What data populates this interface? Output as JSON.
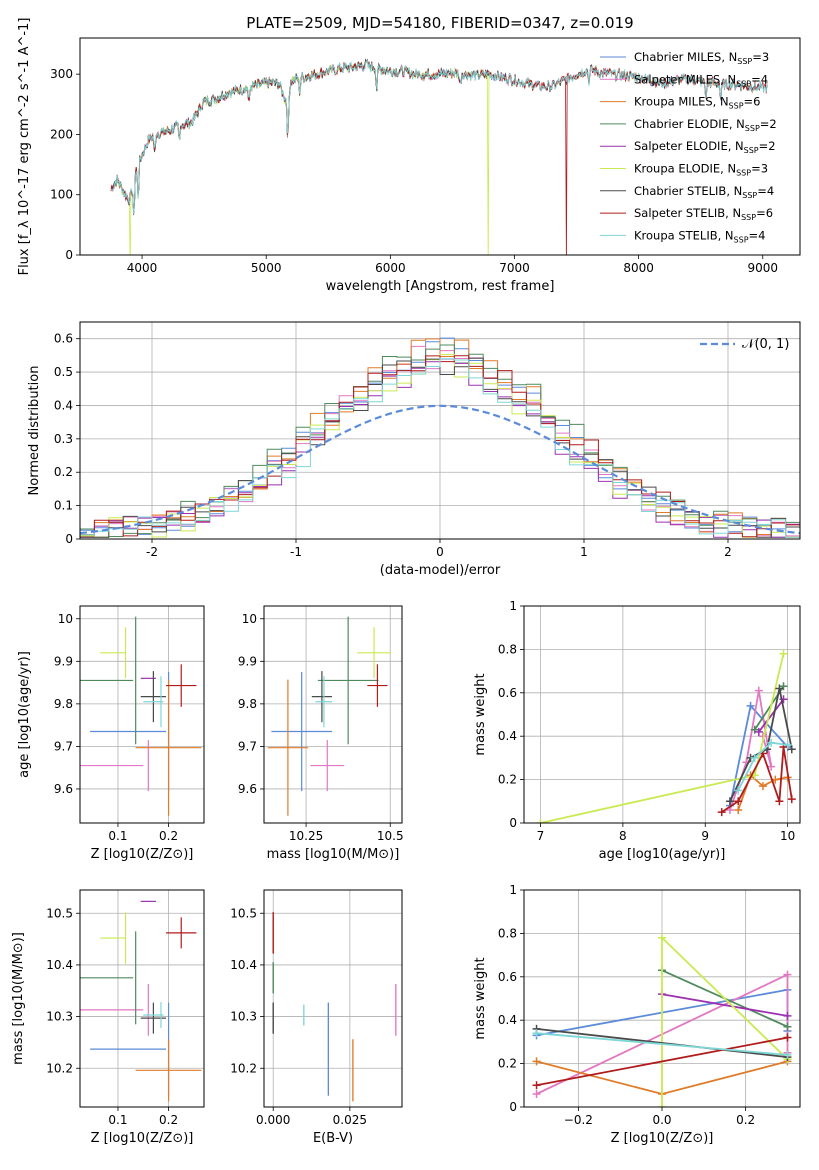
{
  "figure_title": "PLATE=2509, MJD=54180, FIBERID=0347, z=0.019",
  "colors": {
    "Chabrier MILES": "#5b8bd9",
    "Salpeter MILES": "#e377c2",
    "Kroupa MILES": "#e07b28",
    "Chabrier ELODIE": "#4f8a5e",
    "Salpeter ELODIE": "#9b30b0",
    "Kroupa ELODIE": "#c9ea52",
    "Chabrier STELIB": "#4a4a4a",
    "Salpeter STELIB": "#b01c1c",
    "Kroupa STELIB": "#7fd6d6",
    "normal": "#5b8bd9"
  },
  "chart_data": [
    {
      "id": "spectrum",
      "type": "line",
      "title": "PLATE=2509, MJD=54180, FIBERID=0347, z=0.019",
      "xlabel": "wavelength [Angstrom, rest frame]",
      "ylabel": "Flux [f_λ 10^-17 erg cm^-2 s^-1 A^-1]",
      "xlim": [
        3500,
        9300
      ],
      "ylim": [
        0,
        360
      ],
      "xticks": [
        4000,
        5000,
        6000,
        7000,
        8000,
        9000
      ],
      "yticks": [
        0,
        100,
        200,
        300
      ],
      "grid": false,
      "legend_position": "top-right",
      "legend": [
        {
          "label": "Chabrier MILES, N",
          "sub": "SSP",
          "suffix": "=3",
          "model": "Chabrier MILES"
        },
        {
          "label": "Salpeter MILES, N",
          "sub": "SSP",
          "suffix": "=4",
          "model": "Salpeter MILES"
        },
        {
          "label": "Kroupa MILES, N",
          "sub": "SSP",
          "suffix": "=6",
          "model": "Kroupa MILES"
        },
        {
          "label": "Chabrier ELODIE, N",
          "sub": "SSP",
          "suffix": "=2",
          "model": "Chabrier ELODIE"
        },
        {
          "label": "Salpeter ELODIE, N",
          "sub": "SSP",
          "suffix": "=2",
          "model": "Salpeter ELODIE"
        },
        {
          "label": "Kroupa ELODIE, N",
          "sub": "SSP",
          "suffix": "=3",
          "model": "Kroupa ELODIE"
        },
        {
          "label": "Chabrier STELIB, N",
          "sub": "SSP",
          "suffix": "=4",
          "model": "Chabrier STELIB"
        },
        {
          "label": "Salpeter STELIB, N",
          "sub": "SSP",
          "suffix": "=6",
          "model": "Salpeter STELIB"
        },
        {
          "label": "Kroupa STELIB, N",
          "sub": "SSP",
          "suffix": "=4",
          "model": "Kroupa STELIB"
        }
      ],
      "continuum": [
        [
          3750,
          110
        ],
        [
          3800,
          125
        ],
        [
          3850,
          105
        ],
        [
          3900,
          90
        ],
        [
          3950,
          140
        ],
        [
          4000,
          165
        ],
        [
          4050,
          190
        ],
        [
          4100,
          200
        ],
        [
          4200,
          205
        ],
        [
          4300,
          215
        ],
        [
          4400,
          220
        ],
        [
          4500,
          255
        ],
        [
          4600,
          260
        ],
        [
          4700,
          270
        ],
        [
          4800,
          275
        ],
        [
          4900,
          280
        ],
        [
          5000,
          285
        ],
        [
          5100,
          285
        ],
        [
          5170,
          250
        ],
        [
          5200,
          290
        ],
        [
          5300,
          295
        ],
        [
          5400,
          300
        ],
        [
          5500,
          305
        ],
        [
          5600,
          310
        ],
        [
          5700,
          312
        ],
        [
          5800,
          315
        ],
        [
          5900,
          310
        ],
        [
          6000,
          305
        ],
        [
          6100,
          305
        ],
        [
          6200,
          300
        ],
        [
          6300,
          300
        ],
        [
          6400,
          300
        ],
        [
          6500,
          302
        ],
        [
          6600,
          300
        ],
        [
          6700,
          298
        ],
        [
          6800,
          300
        ],
        [
          6900,
          295
        ],
        [
          7000,
          290
        ],
        [
          7100,
          285
        ],
        [
          7200,
          280
        ],
        [
          7300,
          280
        ],
        [
          7400,
          290
        ],
        [
          7500,
          300
        ],
        [
          7600,
          308
        ],
        [
          7700,
          302
        ],
        [
          7800,
          300
        ],
        [
          7900,
          298
        ],
        [
          8000,
          295
        ],
        [
          8100,
          290
        ],
        [
          8200,
          285
        ],
        [
          8300,
          290
        ],
        [
          8400,
          292
        ],
        [
          8500,
          288
        ],
        [
          8600,
          285
        ],
        [
          8700,
          284
        ],
        [
          8800,
          282
        ],
        [
          8900,
          280
        ],
        [
          9000,
          278
        ]
      ],
      "absorption_features": [
        [
          3934,
          70
        ],
        [
          3969,
          60
        ],
        [
          4102,
          35
        ],
        [
          4300,
          35
        ],
        [
          4861,
          30
        ],
        [
          5175,
          70
        ],
        [
          5270,
          25
        ],
        [
          5890,
          40
        ],
        [
          6563,
          20
        ],
        [
          7600,
          20
        ],
        [
          8542,
          30
        ],
        [
          8662,
          30
        ]
      ],
      "dropouts": [
        {
          "model": "Kroupa ELODIE",
          "x": 3905
        },
        {
          "model": "Kroupa ELODIE",
          "x": 6790
        },
        {
          "model": "Salpeter STELIB",
          "x": 7420
        }
      ]
    },
    {
      "id": "residuals",
      "type": "step-histogram",
      "xlabel": "(data-model)/error",
      "ylabel": "Normed distribution",
      "xlim": [
        -2.5,
        2.5
      ],
      "ylim": [
        0,
        0.65
      ],
      "xticks": [
        -2,
        -1,
        0,
        1,
        2
      ],
      "yticks": [
        0.0,
        0.1,
        0.2,
        0.3,
        0.4,
        0.5,
        0.6
      ],
      "grid": true,
      "legend_position": "top-right",
      "legend_label": "𝒩(0, 1)",
      "bin_width": 0.1,
      "reference_curve": "normal pdf, mean 0, sigma 1",
      "histogram_shape": "slightly narrower than the unit normal, peak about 0.5–0.62 near x = 0"
    },
    {
      "id": "age_vs_Z",
      "type": "errorbar",
      "xlabel": "Z [log10(Z/Z⊙)]",
      "ylabel": "age  [log10(age/yr)]",
      "xlim": [
        0.025,
        0.27
      ],
      "ylim": [
        9.52,
        10.03
      ],
      "xticks": [
        0.1,
        0.2
      ],
      "yticks": [
        9.6,
        9.7,
        9.8,
        9.9,
        10.0
      ],
      "grid": true
    },
    {
      "id": "age_vs_mass",
      "type": "errorbar",
      "xlabel": "mass [log10(M/M⊙)]",
      "ylabel": "",
      "xlim": [
        10.125,
        10.535
      ],
      "ylim": [
        9.52,
        10.03
      ],
      "xticks": [
        10.25,
        10.5
      ],
      "yticks": [
        9.6,
        9.7,
        9.8,
        9.9,
        10.0
      ],
      "grid": true
    },
    {
      "id": "weight_vs_age",
      "type": "line",
      "xlabel": "age  [log10(age/yr)]",
      "ylabel": "mass weight",
      "xlim": [
        6.8,
        10.15
      ],
      "ylim": [
        0,
        1
      ],
      "xticks": [
        7,
        8,
        9,
        10
      ],
      "yticks": [
        0.0,
        0.2,
        0.4,
        0.6,
        0.8,
        1.0
      ],
      "grid": true
    },
    {
      "id": "mass_vs_Z",
      "type": "errorbar",
      "xlabel": "Z [log10(Z/Z⊙)]",
      "ylabel": "mass [log10(M/M⊙)]",
      "xlim": [
        0.025,
        0.27
      ],
      "ylim": [
        10.125,
        10.545
      ],
      "xticks": [
        0.1,
        0.2
      ],
      "yticks": [
        10.2,
        10.3,
        10.4,
        10.5
      ],
      "grid": true
    },
    {
      "id": "mass_vs_ebv",
      "type": "errorbar",
      "xlabel": "E(B-V)",
      "ylabel": "",
      "xlim": [
        -0.003,
        0.042
      ],
      "ylim": [
        10.125,
        10.545
      ],
      "xticks": [
        0.0,
        0.025
      ],
      "xticklabels": [
        "0.000",
        "0.025"
      ],
      "yticks": [
        10.2,
        10.3,
        10.4,
        10.5
      ],
      "grid": true
    },
    {
      "id": "weight_vs_Z",
      "type": "line",
      "xlabel": "Z [log10(Z/Z⊙)]",
      "ylabel": "mass weight",
      "xlim": [
        -0.33,
        0.33
      ],
      "ylim": [
        0,
        1
      ],
      "xticks": [
        -0.2,
        0.0,
        0.2
      ],
      "xticklabels": [
        "−0.2",
        "0.0",
        "0.2"
      ],
      "yticks": [
        0.0,
        0.2,
        0.4,
        0.6,
        0.8,
        1.0
      ],
      "grid": true
    }
  ],
  "models": [
    {
      "name": "Chabrier MILES",
      "Z": [
        0.12,
        0.2
      ],
      "Zerr": 0.075,
      "age": 9.735,
      "ageErr": 0.14,
      "mass": 10.237,
      "massErr": 0.09,
      "massLoMinus": 0.05,
      "ebv": 0.018,
      "ebvMassErr": 0.09,
      "sspAge": [
        9.3,
        9.55,
        10.0
      ],
      "sspW": [
        0.08,
        0.54,
        0.35
      ],
      "sspZ": [
        -0.3,
        0.3,
        0.3
      ],
      "sspZW": [
        0.33,
        0.54,
        0.35
      ]
    },
    {
      "name": "Salpeter MILES",
      "Z": [
        0.08,
        0.16
      ],
      "Zerr": 0.07,
      "age": 9.655,
      "ageErr": 0.06,
      "mass": 10.313,
      "massErr": 0.05,
      "ebv": 0.04,
      "ebvMassErr": 0.05,
      "sspAge": [
        9.3,
        9.5,
        9.65,
        9.8,
        9.7
      ],
      "sspW": [
        0.06,
        0.28,
        0.61,
        0.26,
        0.4
      ],
      "sspZ": [
        -0.3,
        0.3,
        0.3
      ],
      "sspZW": [
        0.06,
        0.61,
        0.25
      ]
    },
    {
      "name": "Kroupa MILES",
      "Z": [
        0.2
      ],
      "Zerr": 0.065,
      "age": 9.697,
      "ageErr": 0.16,
      "mass": 10.196,
      "massErr": 0.06,
      "ebv": 0.026,
      "ebvMassErr": 0.06,
      "sspAge": [
        9.4,
        9.55,
        9.7,
        9.85,
        10.0
      ],
      "sspW": [
        0.06,
        0.22,
        0.17,
        0.2,
        0.21
      ],
      "sspZ": [
        -0.3,
        0.0,
        0.3
      ],
      "sspZW": [
        0.21,
        0.06,
        0.21
      ]
    },
    {
      "name": "Chabrier ELODIE",
      "Z": [
        0.06,
        0.135
      ],
      "Zerr": 0.07,
      "age": 9.855,
      "ageErr": 0.15,
      "mass": 10.375,
      "massErr": 0.09,
      "ebv": 0.0,
      "ebvMassErr": 0.03,
      "sspAge": [
        9.6,
        9.95
      ],
      "sspW": [
        0.43,
        0.63
      ],
      "sspZ": [
        0.0,
        0.3
      ],
      "sspZW": [
        0.63,
        0.37
      ]
    },
    {
      "name": "Salpeter ELODIE",
      "Z": [
        0.16
      ],
      "Zerr": 0.015,
      "age": 9.86,
      "ageErr": 0.0,
      "mass": 10.523,
      "massErr": 0.0,
      "ebv": 0.0,
      "ebvMassErr": 0.0,
      "sspAge": [
        9.65,
        9.95
      ],
      "sspW": [
        0.42,
        0.57
      ],
      "sspZ": [
        0.0,
        0.3
      ],
      "sspZW": [
        0.52,
        0.42
      ]
    },
    {
      "name": "Kroupa ELODIE",
      "Z": [
        0.09,
        0.115
      ],
      "Zerr": 0.025,
      "age": 9.92,
      "ageErr": 0.06,
      "mass": 10.452,
      "massErr": 0.05,
      "ebv": 0.0,
      "ebvMassErr": 0.03,
      "sspAge": [
        7.0,
        9.6,
        9.95
      ],
      "sspW": [
        0.0,
        0.22,
        0.78
      ],
      "sspZ": [
        0.0,
        0.0,
        0.3
      ],
      "sspZW": [
        0.0,
        0.78,
        0.22
      ]
    },
    {
      "name": "Chabrier STELIB",
      "Z": [
        0.17
      ],
      "Zerr": 0.025,
      "age": 9.817,
      "ageErr": 0.06,
      "mass": 10.297,
      "massErr": 0.03,
      "ebv": 0.0,
      "ebvMassErr": 0.03,
      "sspAge": [
        9.3,
        9.55,
        9.75,
        9.9,
        10.05
      ],
      "sspW": [
        0.1,
        0.3,
        0.34,
        0.62,
        0.34
      ],
      "sspZ": [
        -0.3,
        0.3
      ],
      "sspZW": [
        0.36,
        0.23
      ]
    },
    {
      "name": "Salpeter STELIB",
      "Z": [
        0.225
      ],
      "Zerr": 0.03,
      "age": 9.843,
      "ageErr": 0.05,
      "mass": 10.462,
      "massErr": 0.03,
      "ebv": 0.0,
      "ebvMassErr": 0.04,
      "sspAge": [
        9.2,
        9.4,
        9.7,
        9.9,
        9.95,
        10.05
      ],
      "sspW": [
        0.05,
        0.1,
        0.32,
        0.1,
        0.35,
        0.11
      ],
      "sspZ": [
        -0.3,
        0.3
      ],
      "sspZW": [
        0.1,
        0.32
      ]
    },
    {
      "name": "Kroupa STELIB",
      "Z": [
        0.17,
        0.185
      ],
      "Zerr": 0.02,
      "age": 9.805,
      "ageErr": 0.06,
      "mass": 10.303,
      "massErr": 0.025,
      "ebv": 0.01,
      "ebvMassErr": 0.02,
      "sspAge": [
        9.4,
        9.6,
        9.8,
        10.0
      ],
      "sspW": [
        0.15,
        0.3,
        0.37,
        0.36
      ],
      "sspZ": [
        -0.3,
        0.3
      ],
      "sspZW": [
        0.34,
        0.24
      ]
    }
  ]
}
